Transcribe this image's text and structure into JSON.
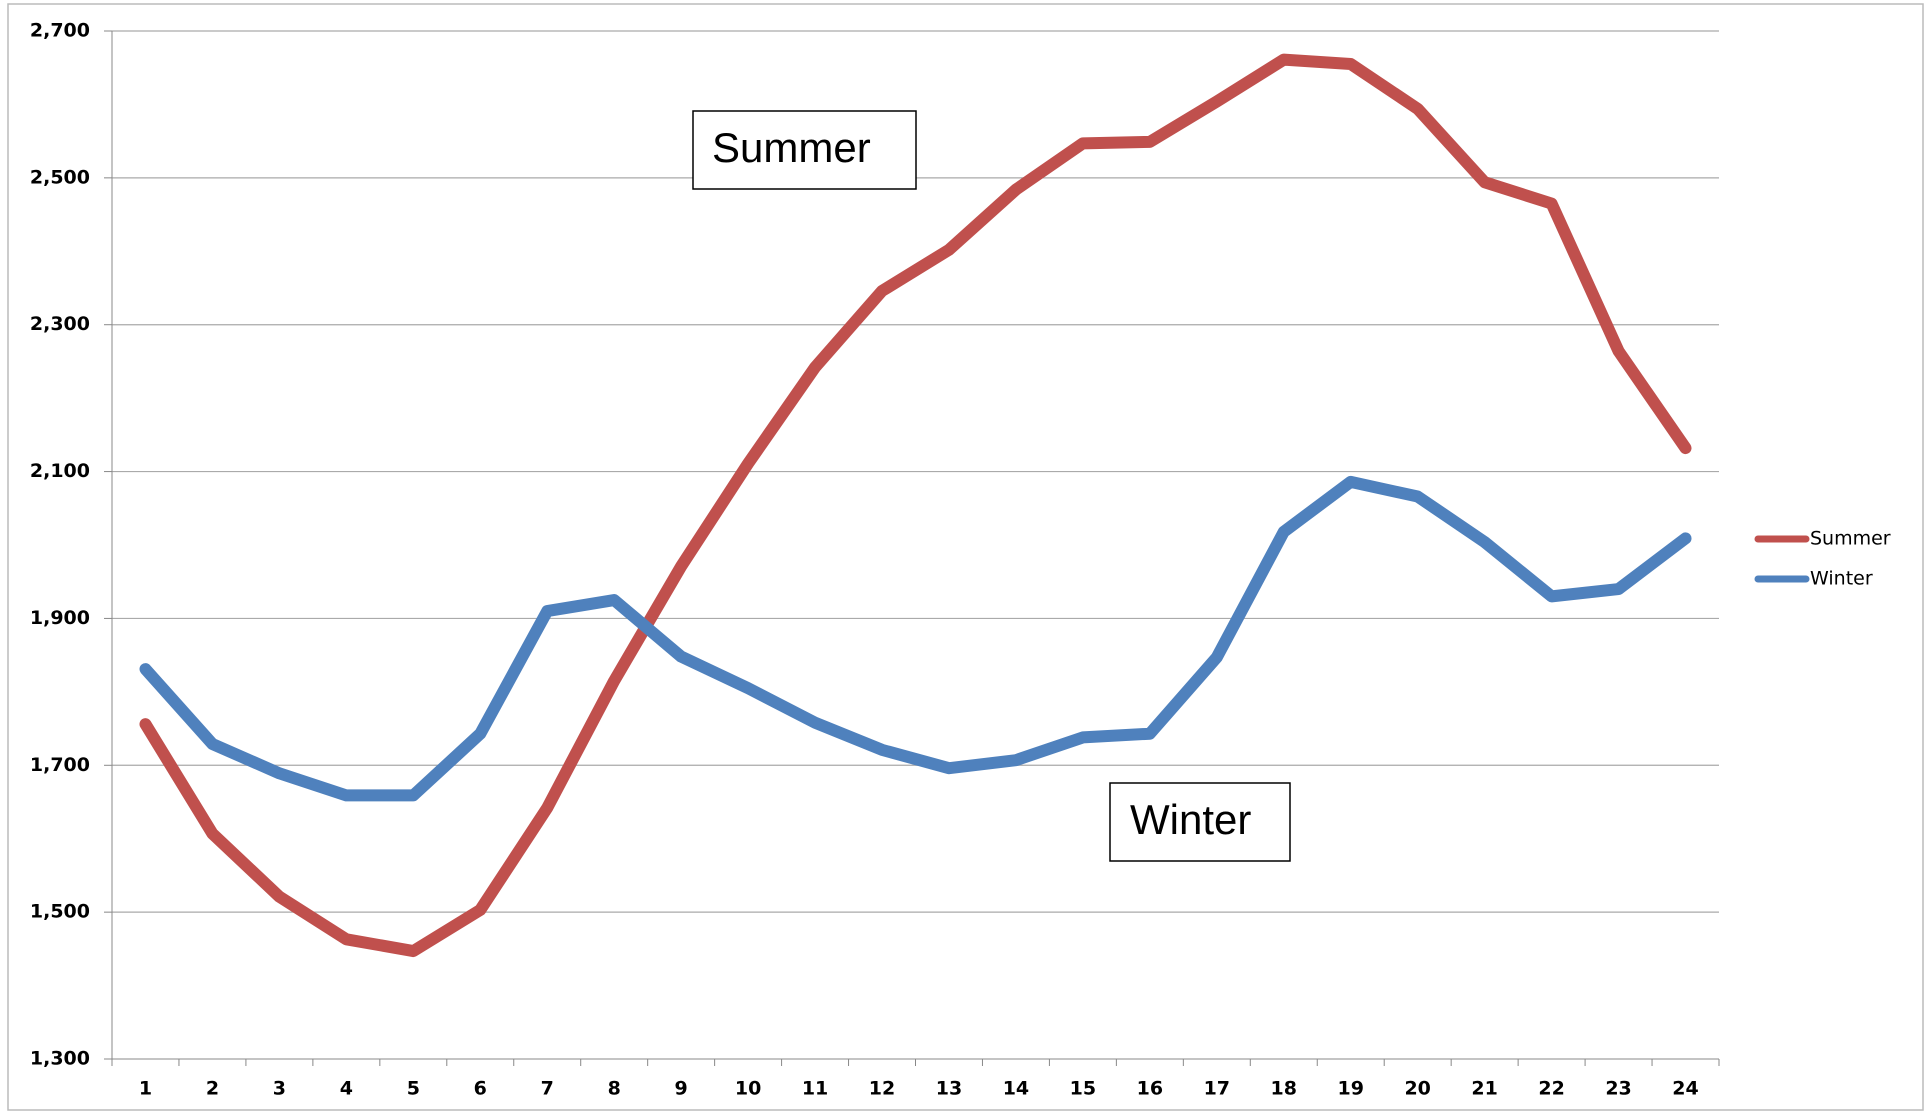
{
  "chart_data": {
    "type": "line",
    "categories": [
      "1",
      "2",
      "3",
      "4",
      "5",
      "6",
      "7",
      "8",
      "9",
      "10",
      "11",
      "12",
      "13",
      "14",
      "15",
      "16",
      "17",
      "18",
      "19",
      "20",
      "21",
      "22",
      "23",
      "24"
    ],
    "series": [
      {
        "name": "Summer",
        "color": "#c0504d",
        "values": [
          1756,
          1607,
          1521,
          1463,
          1447,
          1503,
          1642,
          1815,
          1971,
          2111,
          2242,
          2346,
          2402,
          2484,
          2547,
          2549,
          2604,
          2661,
          2655,
          2594,
          2494,
          2465,
          2264,
          2132
        ]
      },
      {
        "name": "Winter",
        "color": "#4f81bd",
        "values": [
          1831,
          1729,
          1689,
          1659,
          1659,
          1743,
          1910,
          1925,
          1848,
          1805,
          1758,
          1721,
          1696,
          1707,
          1738,
          1743,
          1847,
          2018,
          2086,
          2066,
          2004,
          1930,
          1940,
          2009
        ]
      }
    ],
    "annotations": [
      "Summer",
      "Winter"
    ],
    "ylim": [
      1300,
      2700
    ],
    "yticks": [
      {
        "value": 1300,
        "label": "1,300"
      },
      {
        "value": 1500,
        "label": "1,500"
      },
      {
        "value": 1700,
        "label": "1,700"
      },
      {
        "value": 1900,
        "label": "1,900"
      },
      {
        "value": 2100,
        "label": "2,100"
      },
      {
        "value": 2300,
        "label": "2,300"
      },
      {
        "value": 2500,
        "label": "2,500"
      },
      {
        "value": 2700,
        "label": "2,700"
      }
    ],
    "grid": true,
    "legend": "right"
  }
}
